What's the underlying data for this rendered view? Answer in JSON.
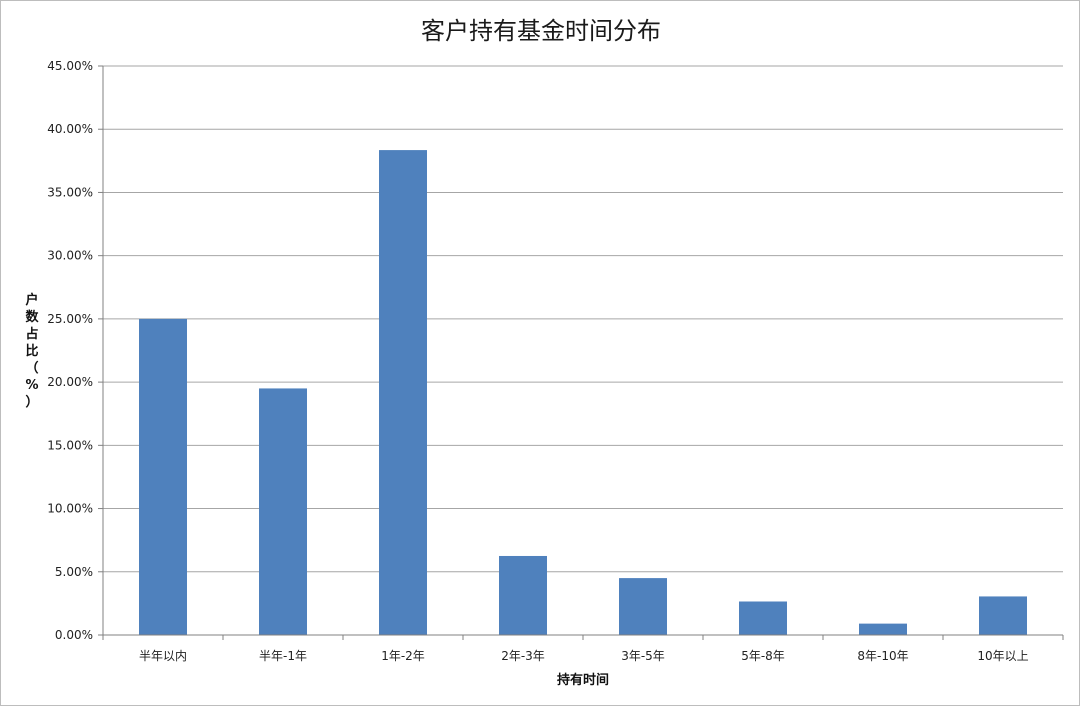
{
  "chart_data": {
    "type": "bar",
    "title": "客户持有基金时间分布",
    "xlabel": "持有时间",
    "ylabel_chars": [
      "户",
      "数",
      "占",
      "比",
      "（",
      "%",
      "）"
    ],
    "categories": [
      "半年以内",
      "半年-1年",
      "1年-2年",
      "2年-3年",
      "3年-5年",
      "5年-8年",
      "8年-10年",
      "10年以上"
    ],
    "values": [
      25.0,
      19.5,
      38.35,
      6.25,
      4.5,
      2.65,
      0.9,
      3.05
    ],
    "value_unit": "%",
    "ylim": [
      0,
      45
    ],
    "yticks": [
      0,
      5,
      10,
      15,
      20,
      25,
      30,
      35,
      40,
      45
    ],
    "ytick_labels": [
      "0.00%",
      "5.00%",
      "10.00%",
      "15.00%",
      "20.00%",
      "25.00%",
      "30.00%",
      "35.00%",
      "40.00%",
      "45.00%"
    ],
    "bar_color": "#4F81BD",
    "grid": true,
    "legend": "none"
  }
}
